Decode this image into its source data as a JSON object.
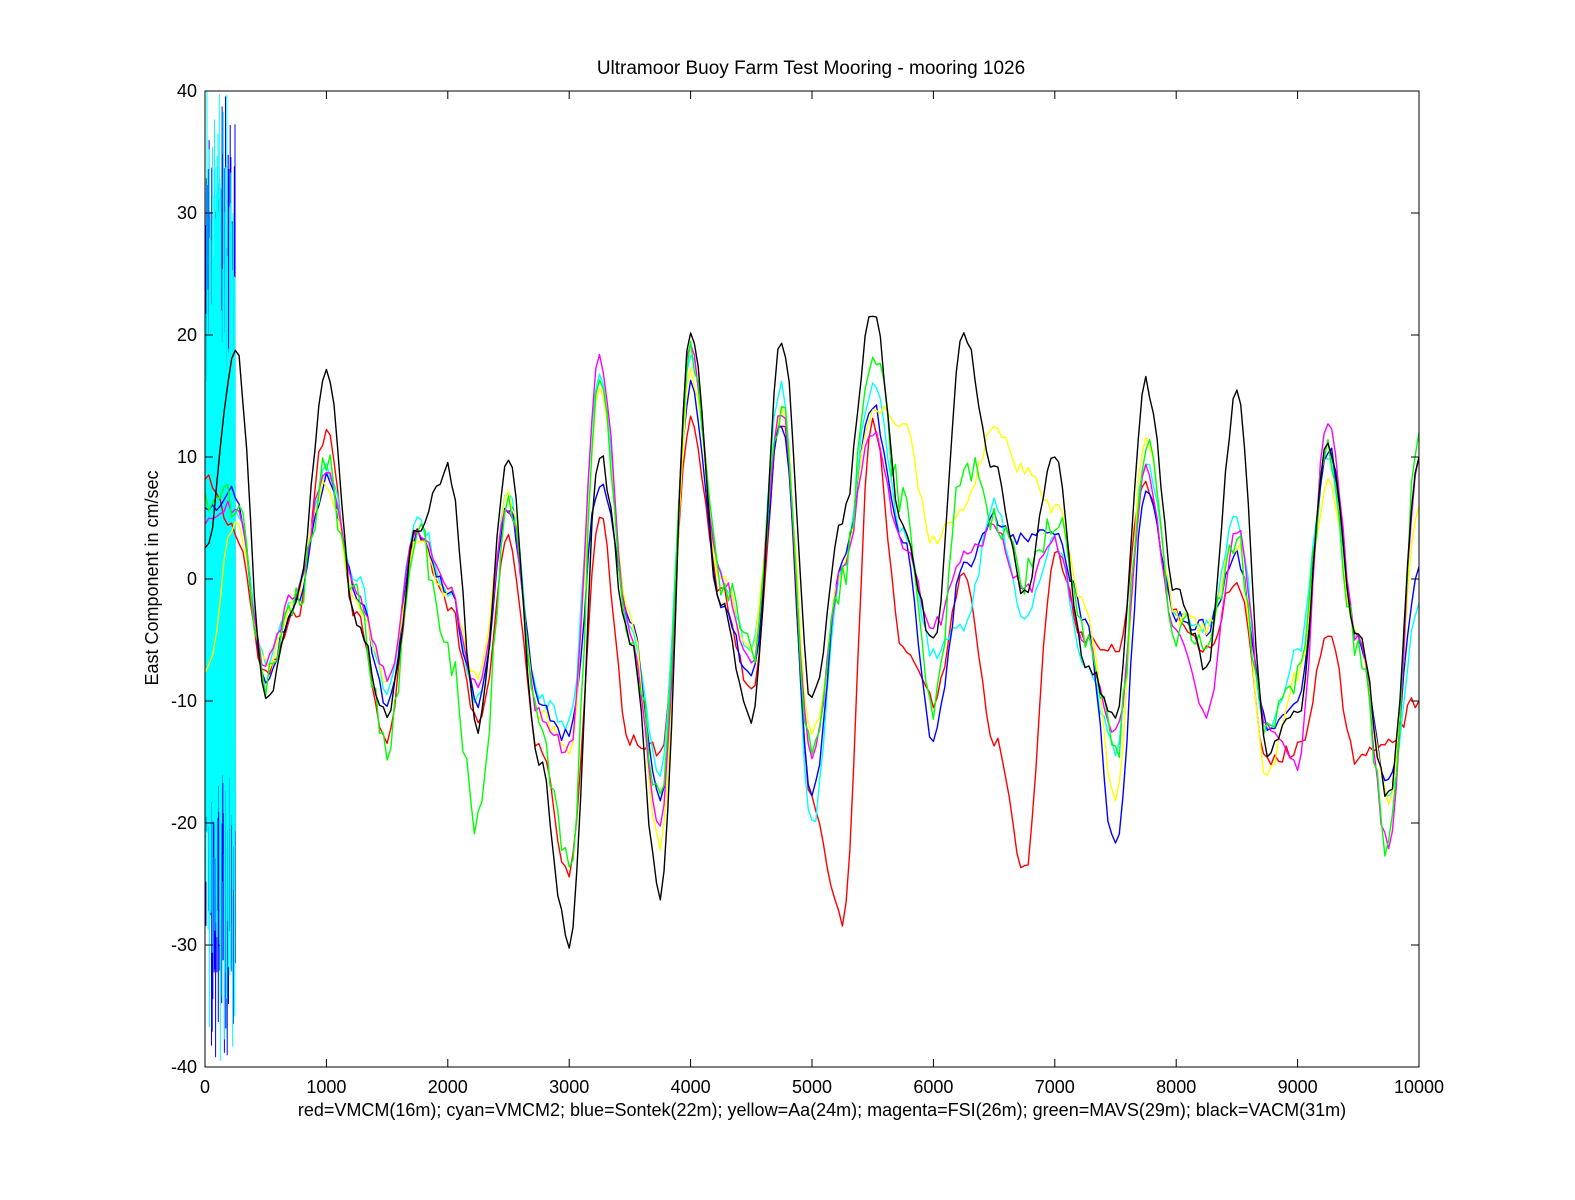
{
  "chart_data": {
    "type": "line",
    "title": "Ultramoor Buoy Farm Test Mooring - mooring 1026",
    "xlabel": "red=VMCM(16m); cyan=VMCM2; blue=Sontek(22m); yellow=Aa(24m); magenta=FSI(26m); green=MAVS(29m); black=VACM(31m)",
    "ylabel": "East Component in cm/sec",
    "xlim": [
      0,
      10000
    ],
    "ylim": [
      -40,
      40
    ],
    "x_ticks": [
      0,
      1000,
      2000,
      3000,
      4000,
      5000,
      6000,
      7000,
      8000,
      9000,
      10000
    ],
    "y_ticks": [
      -40,
      -30,
      -20,
      -10,
      0,
      10,
      20,
      30,
      40
    ],
    "grid": false,
    "legend": "none",
    "x": [
      0,
      250,
      500,
      750,
      1000,
      1250,
      1500,
      1750,
      2000,
      2250,
      2500,
      2750,
      3000,
      3250,
      3500,
      3750,
      4000,
      4250,
      4500,
      4750,
      5000,
      5250,
      5500,
      5750,
      6000,
      6250,
      6500,
      6750,
      7000,
      7250,
      7500,
      7750,
      8000,
      8250,
      8500,
      8750,
      9000,
      9250,
      9500,
      9750,
      10000
    ],
    "series": [
      {
        "color": "#ff0000",
        "values": [
          8,
          4,
          -8,
          -3,
          12,
          -3,
          -13,
          4,
          -2,
          -12,
          3,
          -14,
          -24,
          5,
          -13,
          -14,
          13,
          -1,
          -9,
          13,
          -18,
          -28,
          13,
          -6,
          -10,
          0,
          -13,
          -24,
          2,
          -5,
          -6,
          8,
          -3,
          -6,
          0,
          -15,
          -14,
          -5,
          -15,
          -13,
          -10
        ]
      },
      {
        "color": "#00ffff",
        "values": [
          6,
          6,
          -7,
          -1,
          9,
          0,
          -9,
          5,
          -1,
          -10,
          7,
          -10,
          -12,
          17,
          -4,
          -16,
          18,
          0,
          -6,
          16,
          -20,
          1,
          16,
          4,
          -6,
          -4,
          6,
          -3,
          3,
          -7,
          -14,
          10,
          -3,
          -4,
          5,
          -13,
          -6,
          10,
          -5,
          -18,
          -2
        ]
      },
      {
        "color": "#0000ff",
        "values": [
          6,
          7,
          -8,
          -2,
          8,
          -1,
          -10,
          4,
          -1,
          -10,
          6,
          -10,
          -13,
          8,
          -3,
          -18,
          16,
          -2,
          -8,
          13,
          -18,
          1,
          14,
          3,
          -13,
          1,
          5,
          3,
          4,
          -3,
          -22,
          7,
          -3,
          -4,
          2,
          -12,
          -10,
          11,
          -5,
          -17,
          1
        ]
      },
      {
        "color": "#ffff00",
        "values": [
          -8,
          5,
          -7,
          -1,
          8,
          -2,
          -8,
          3,
          -1,
          -8,
          7,
          -11,
          -14,
          15,
          -3,
          -22,
          17,
          0,
          -6,
          14,
          -13,
          1,
          14,
          13,
          3,
          6,
          12,
          9,
          6,
          -2,
          -18,
          12,
          -3,
          -4,
          3,
          -16,
          -8,
          8,
          -5,
          -18,
          6
        ]
      },
      {
        "color": "#ff00ff",
        "values": [
          5,
          6,
          -7,
          -1,
          9,
          -1,
          -8,
          4,
          -1,
          -9,
          6,
          -11,
          -14,
          18,
          -4,
          -20,
          19,
          0,
          -7,
          14,
          -15,
          1,
          12,
          3,
          -4,
          2,
          4,
          -1,
          3,
          -5,
          -13,
          9,
          -4,
          -11,
          4,
          -12,
          -15,
          13,
          -5,
          -22,
          10
        ]
      },
      {
        "color": "#00ff00",
        "values": [
          7,
          6,
          -8,
          -2,
          9,
          -2,
          -14,
          4,
          -6,
          -20,
          6,
          -12,
          -24,
          16,
          -6,
          -17,
          19,
          0,
          -6,
          14,
          -15,
          0,
          19,
          6,
          -10,
          10,
          5,
          0,
          5,
          -5,
          -14,
          11,
          -4,
          -5,
          3,
          -13,
          -8,
          10,
          -6,
          -22,
          12
        ]
      },
      {
        "color": "#000000",
        "values": [
          2,
          19,
          -10,
          -2,
          17,
          -4,
          -11,
          4,
          9,
          -12,
          10,
          -15,
          -30,
          10,
          -5,
          -26,
          20,
          -2,
          -12,
          20,
          -10,
          5,
          22,
          4,
          -5,
          20,
          9,
          -1,
          10,
          -7,
          -11,
          16,
          -1,
          -7,
          15,
          -14,
          -11,
          11,
          -5,
          -18,
          10
        ]
      }
    ],
    "startup_noise": {
      "x_range": [
        0,
        250
      ],
      "series": [
        {
          "color": "#0000ff",
          "y_range": [
            -40,
            40
          ]
        },
        {
          "color": "#00ffff",
          "y_range": [
            -40,
            40
          ]
        }
      ]
    }
  }
}
